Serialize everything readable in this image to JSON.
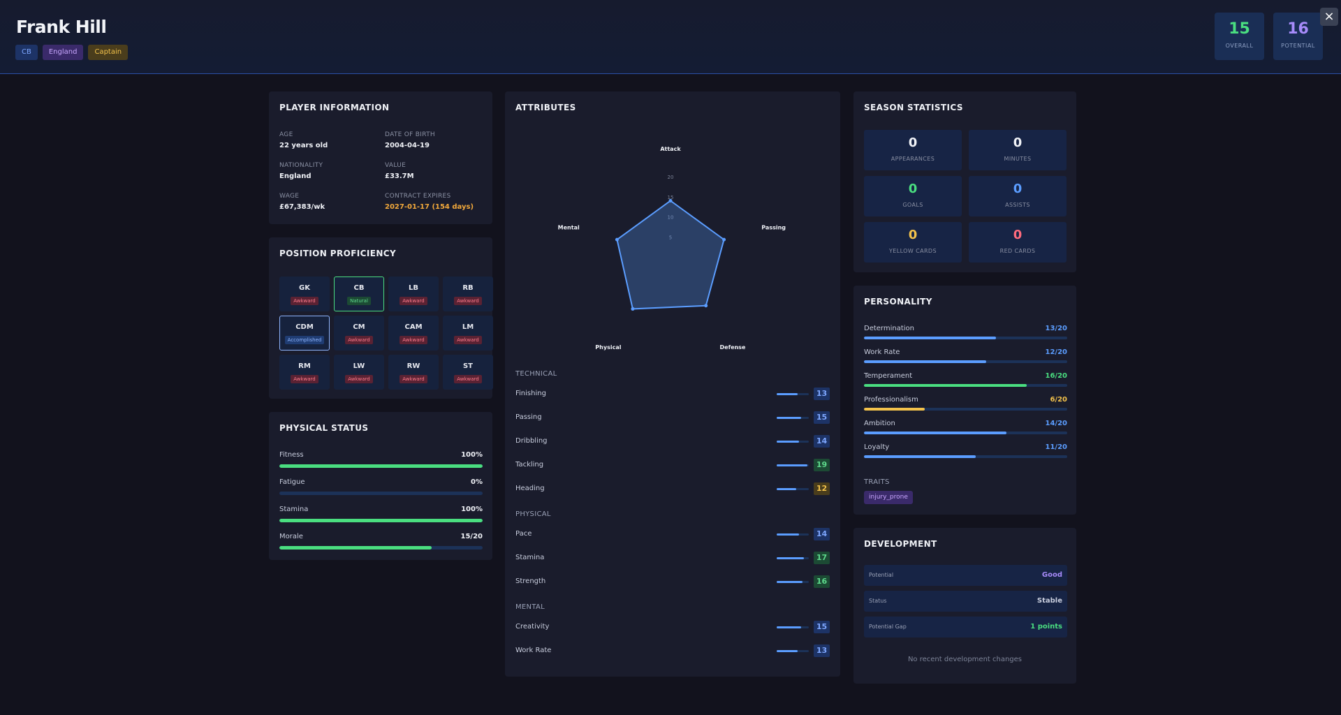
{
  "player": {
    "name": "Frank Hill",
    "tags": [
      "CB",
      "England",
      "Captain"
    ],
    "overall": {
      "value": "15",
      "label": "OVERALL"
    },
    "potential": {
      "value": "16",
      "label": "POTENTIAL"
    },
    "close_icon": "×"
  },
  "colors": {
    "accent": "#5b9dff",
    "green": "#4ade80",
    "gold": "#f3c24b",
    "red": "#ff6b7d",
    "purple": "#a78bfa"
  },
  "info": {
    "title": "PLAYER INFORMATION",
    "fields": [
      {
        "label": "AGE",
        "value": "22 years old"
      },
      {
        "label": "DATE OF BIRTH",
        "value": "2004-04-19"
      },
      {
        "label": "NATIONALITY",
        "value": "England"
      },
      {
        "label": "VALUE",
        "value": "£33.7M"
      },
      {
        "label": "WAGE",
        "value": "£67,383/wk"
      },
      {
        "label": "CONTRACT EXPIRES",
        "value": "2027-01-17 (154 days)"
      }
    ]
  },
  "positions": {
    "title": "POSITION PROFICIENCY",
    "items": [
      {
        "pos": "GK",
        "level": "Awkward"
      },
      {
        "pos": "CB",
        "level": "Natural"
      },
      {
        "pos": "LB",
        "level": "Awkward"
      },
      {
        "pos": "RB",
        "level": "Awkward"
      },
      {
        "pos": "CDM",
        "level": "Accomplished"
      },
      {
        "pos": "CM",
        "level": "Awkward"
      },
      {
        "pos": "CAM",
        "level": "Awkward"
      },
      {
        "pos": "LM",
        "level": "Awkward"
      },
      {
        "pos": "RM",
        "level": "Awkward"
      },
      {
        "pos": "LW",
        "level": "Awkward"
      },
      {
        "pos": "RW",
        "level": "Awkward"
      },
      {
        "pos": "ST",
        "level": "Awkward"
      }
    ]
  },
  "physical": {
    "title": "PHYSICAL STATUS",
    "items": [
      {
        "label": "Fitness",
        "value": "100%",
        "fraction": 1.0,
        "color": "#4ade80"
      },
      {
        "label": "Fatigue",
        "value": "0%",
        "fraction": 0.0,
        "color": "#4ade80"
      },
      {
        "label": "Stamina",
        "value": "100%",
        "fraction": 1.0,
        "color": "#4ade80"
      },
      {
        "label": "Morale",
        "value": "15/20",
        "fraction": 0.75,
        "color": "#4ade80"
      }
    ]
  },
  "attributes": {
    "title": "ATTRIBUTES",
    "radar": {
      "axes": [
        "Attack",
        "Passing",
        "Defense",
        "Physical",
        "Mental"
      ],
      "values": [
        14,
        14,
        15,
        16,
        14
      ],
      "max": 20,
      "ticks": [
        "5",
        "10",
        "15",
        "20"
      ]
    },
    "groups": [
      {
        "name": "TECHNICAL",
        "items": [
          {
            "name": "Finishing",
            "value": "13"
          },
          {
            "name": "Passing",
            "value": "15"
          },
          {
            "name": "Dribbling",
            "value": "14"
          },
          {
            "name": "Tackling",
            "value": "19"
          },
          {
            "name": "Heading",
            "value": "12"
          }
        ]
      },
      {
        "name": "PHYSICAL",
        "items": [
          {
            "name": "Pace",
            "value": "14"
          },
          {
            "name": "Stamina",
            "value": "17"
          },
          {
            "name": "Strength",
            "value": "16"
          }
        ]
      },
      {
        "name": "MENTAL",
        "items": [
          {
            "name": "Creativity",
            "value": "15"
          },
          {
            "name": "Work Rate",
            "value": "13"
          }
        ]
      }
    ]
  },
  "season": {
    "title": "SEASON STATISTICS",
    "stats": [
      {
        "value": "0",
        "label": "APPEARANCES",
        "color": "#f0f2f7"
      },
      {
        "value": "0",
        "label": "MINUTES",
        "color": "#f0f2f7"
      },
      {
        "value": "0",
        "label": "GOALS",
        "color": "#4ade80"
      },
      {
        "value": "0",
        "label": "ASSISTS",
        "color": "#5b9dff"
      },
      {
        "value": "0",
        "label": "YELLOW CARDS",
        "color": "#f3c24b"
      },
      {
        "value": "0",
        "label": "RED CARDS",
        "color": "#ff6b7d"
      }
    ]
  },
  "personality": {
    "title": "PERSONALITY",
    "items": [
      {
        "label": "Determination",
        "value": "13/20",
        "fraction": 0.65,
        "color": "#5b9dff"
      },
      {
        "label": "Work Rate",
        "value": "12/20",
        "fraction": 0.6,
        "color": "#5b9dff"
      },
      {
        "label": "Temperament",
        "value": "16/20",
        "fraction": 0.8,
        "color": "#4ade80"
      },
      {
        "label": "Professionalism",
        "value": "6/20",
        "fraction": 0.3,
        "color": "#f3c24b"
      },
      {
        "label": "Ambition",
        "value": "14/20",
        "fraction": 0.7,
        "color": "#5b9dff"
      },
      {
        "label": "Loyalty",
        "value": "11/20",
        "fraction": 0.55,
        "color": "#5b9dff"
      }
    ],
    "traits_label": "TRAITS",
    "traits": [
      "injury_prone"
    ]
  },
  "development": {
    "title": "DEVELOPMENT",
    "rows": [
      {
        "label": "Potential",
        "value": "Good",
        "color": "#a78bfa"
      },
      {
        "label": "Status",
        "value": "Stable",
        "color": "#c9cede"
      },
      {
        "label": "Potential Gap",
        "value": "1 points",
        "color": "#4ade80"
      }
    ],
    "empty_text": "No recent development changes"
  }
}
